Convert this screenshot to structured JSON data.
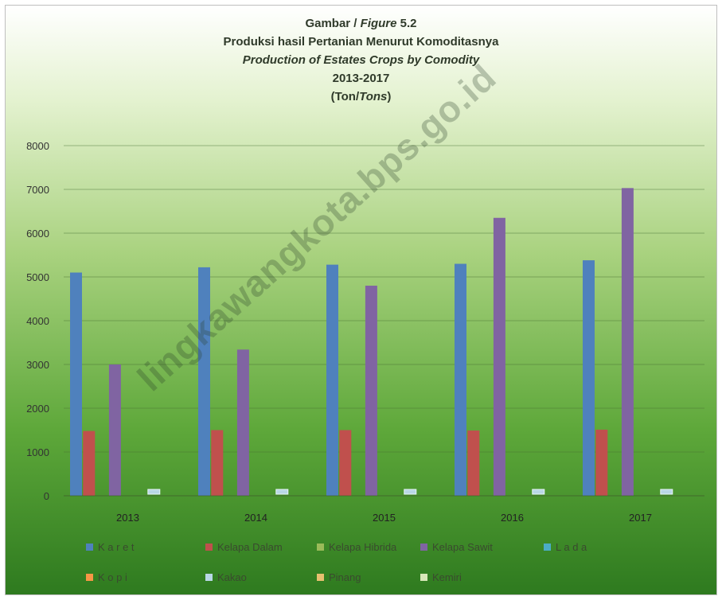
{
  "chart_data": {
    "type": "bar",
    "title_lines": [
      {
        "id": "figure_label",
        "text_plain": "Gambar / ",
        "text_italic": "Figure",
        "text_tail": " 5.2"
      },
      {
        "id": "title_id",
        "text": "Produksi hasil Pertanian Menurut Komoditasnya"
      },
      {
        "id": "title_en",
        "text": "Production of  Estates Crops by Comodity"
      },
      {
        "id": "years",
        "text": "2013-2017"
      },
      {
        "id": "unit",
        "text_plain": "(Ton/",
        "text_italic": "Tons",
        "text_tail": ")"
      }
    ],
    "categories": [
      "2013",
      "2014",
      "2015",
      "2016",
      "2017"
    ],
    "ylim": [
      0,
      8000
    ],
    "yticks": [
      "0",
      "1000",
      "2000",
      "3000",
      "4000",
      "5000",
      "6000",
      "7000",
      "8000"
    ],
    "grid": true,
    "legend_position": "bottom",
    "series": [
      {
        "name": "K a r e t",
        "color": "#4f81bd",
        "values": [
          5100,
          5220,
          5280,
          5300,
          5380
        ]
      },
      {
        "name": "Kelapa Dalam",
        "color": "#c0504d",
        "values": [
          1480,
          1500,
          1500,
          1490,
          1510
        ]
      },
      {
        "name": "Kelapa Hibrida",
        "color": "#9bbb59",
        "values": [
          0,
          0,
          0,
          0,
          0
        ]
      },
      {
        "name": "Kelapa Sawit",
        "color": "#8064a2",
        "values": [
          3000,
          3340,
          4800,
          6350,
          7030
        ]
      },
      {
        "name": "L a d a",
        "color": "#4bacc6",
        "values": [
          0,
          0,
          0,
          0,
          0
        ]
      },
      {
        "name": "K o p i",
        "color": "#f79646",
        "values": [
          0,
          0,
          0,
          0,
          0
        ]
      },
      {
        "name": "Kakao",
        "color": "#b9d7e6",
        "values": [
          130,
          130,
          130,
          130,
          130
        ]
      },
      {
        "name": "Pinang",
        "color": "#e8c070",
        "values": [
          0,
          0,
          0,
          0,
          0
        ]
      },
      {
        "name": "Kemiri",
        "color": "#d8e8b8",
        "values": [
          0,
          0,
          0,
          0,
          0
        ]
      }
    ]
  },
  "watermark": "lingkawangkota.bps.go.id"
}
